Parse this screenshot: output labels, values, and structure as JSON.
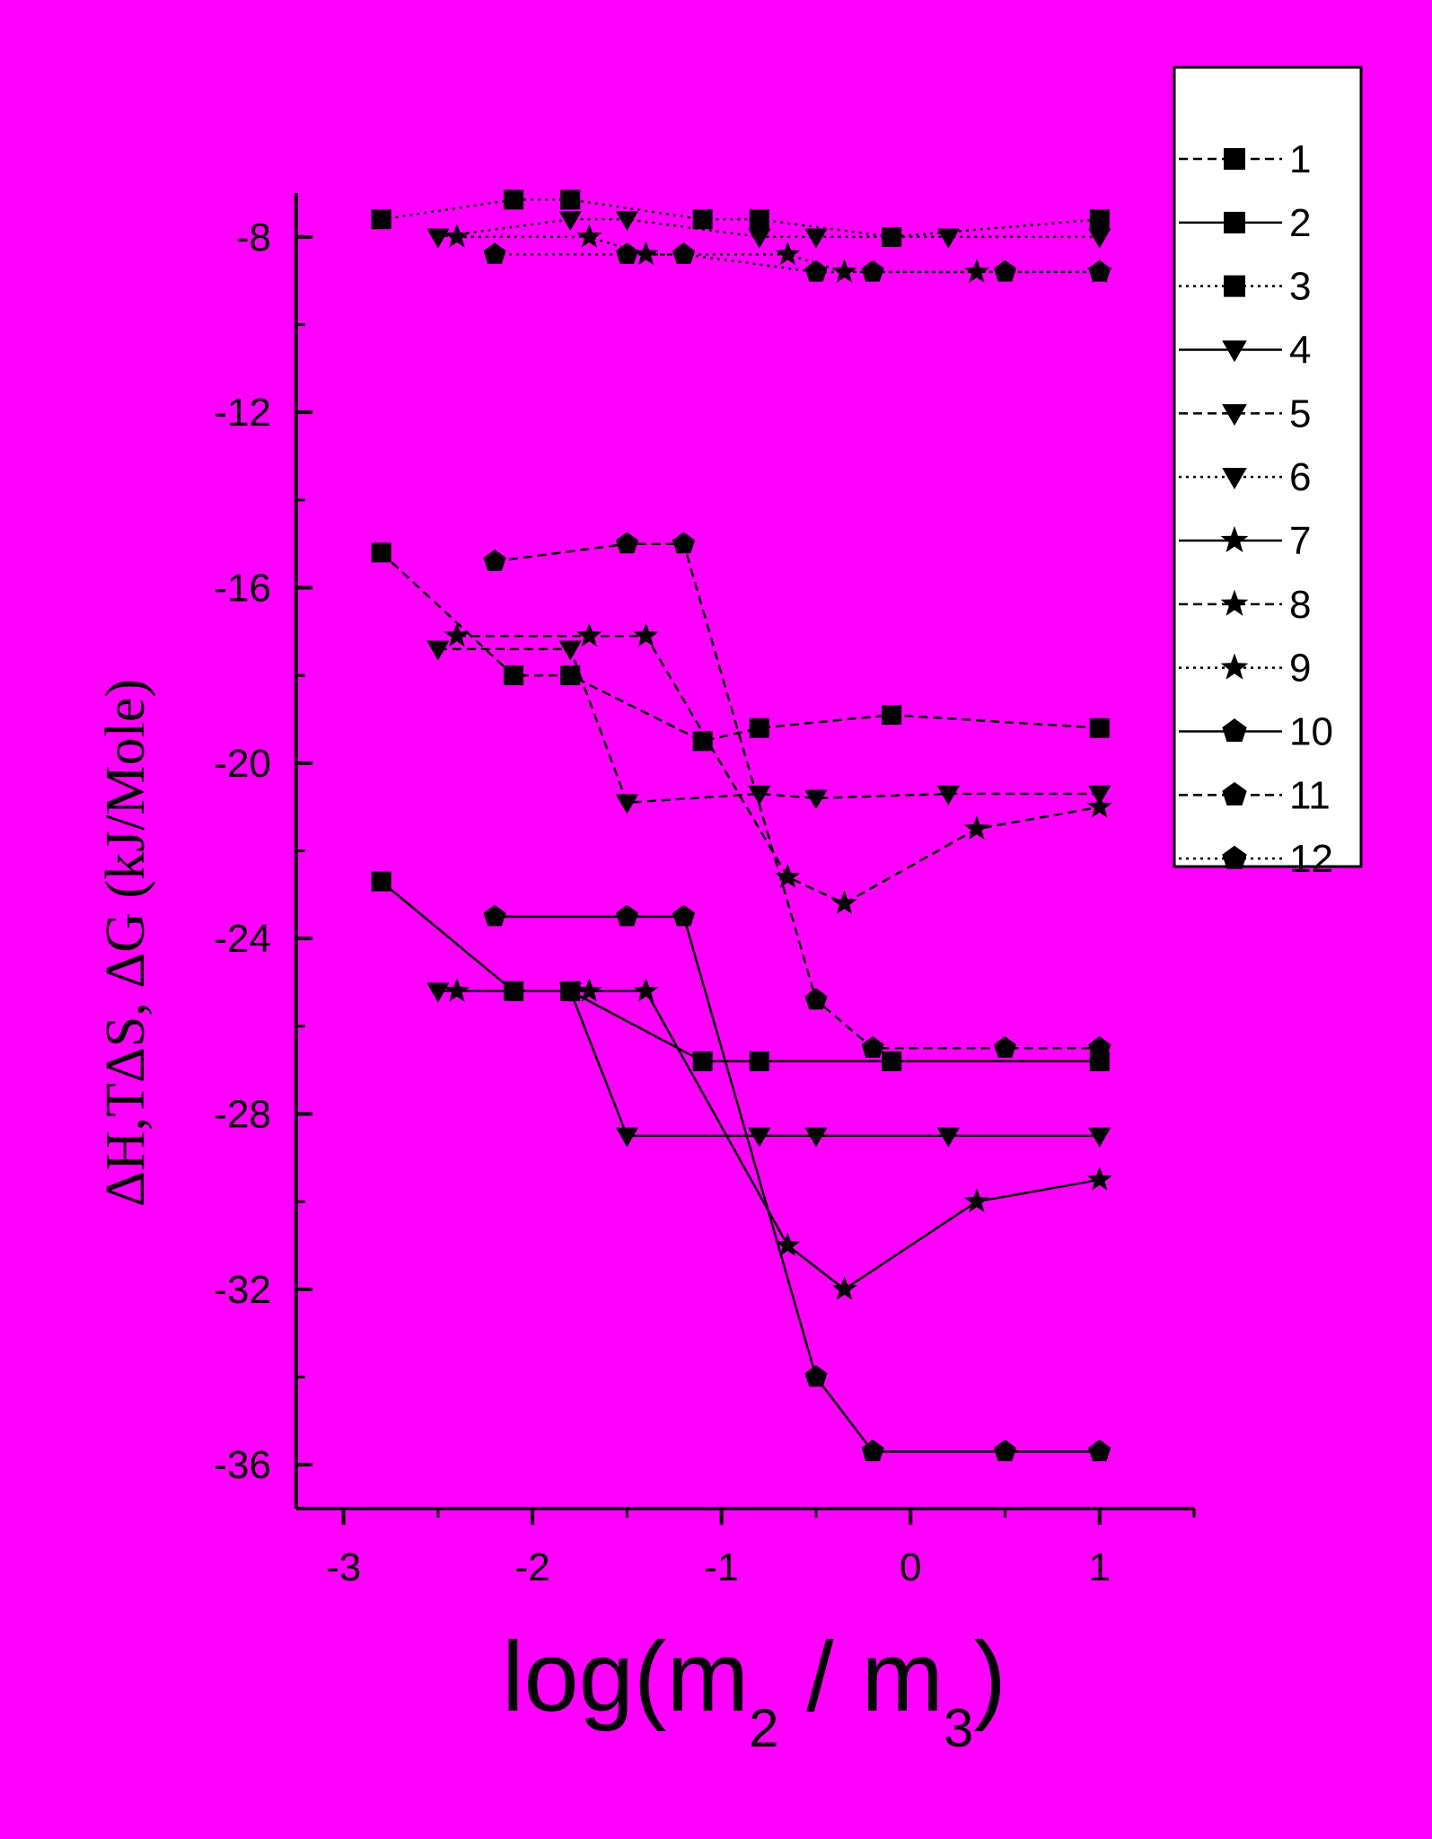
{
  "chart_data": {
    "type": "line",
    "xlabel": {
      "prefix": "log(m",
      "sub1": "2",
      "mid": " / m",
      "sub2": "3",
      "suffix": ")"
    },
    "ylabel": "ΔH,TΔS, ΔG  (kJ/Mole)",
    "xlim": [
      -3.25,
      1.5
    ],
    "ylim": [
      -37.0,
      -7.0
    ],
    "xticks": [
      -3,
      -2,
      -1,
      0,
      1
    ],
    "xtick_labels": [
      "-3",
      "-2",
      "-1",
      "0",
      "1"
    ],
    "yticks": [
      -8,
      -12,
      -16,
      -20,
      -24,
      -28,
      -32,
      -36
    ],
    "ytick_labels": [
      "-8",
      "-12",
      "-16",
      "-20",
      "-24",
      "-28",
      "-32",
      "-36"
    ],
    "grid": false,
    "legend_position": "top-right",
    "series": [
      {
        "name": "1",
        "marker": "square",
        "linestyle": "dashed",
        "x": [
          -2.8,
          -2.1,
          -1.8,
          -1.1,
          -0.8,
          -0.1,
          1.0
        ],
        "y": [
          -15.2,
          -18.0,
          -18.0,
          -19.5,
          -19.2,
          -18.9,
          -19.2
        ]
      },
      {
        "name": "2",
        "marker": "square",
        "linestyle": "solid",
        "x": [
          -2.8,
          -2.1,
          -1.8,
          -1.1,
          -0.8,
          -0.1,
          1.0
        ],
        "y": [
          -22.7,
          -25.2,
          -25.2,
          -26.8,
          -26.8,
          -26.8,
          -26.8
        ]
      },
      {
        "name": "3",
        "marker": "square",
        "linestyle": "dotted",
        "x": [
          -2.8,
          -2.1,
          -1.8,
          -1.1,
          -0.8,
          -0.1,
          1.0
        ],
        "y": [
          -7.6,
          -7.15,
          -7.15,
          -7.6,
          -7.6,
          -8.0,
          -7.6
        ]
      },
      {
        "name": "4",
        "marker": "triangle-down",
        "linestyle": "solid",
        "x": [
          -2.5,
          -1.8,
          -1.5,
          -0.8,
          -0.5,
          0.2,
          1.0
        ],
        "y": [
          -25.2,
          -25.2,
          -28.5,
          -28.5,
          -28.5,
          -28.5,
          -28.5
        ]
      },
      {
        "name": "5",
        "marker": "triangle-down",
        "linestyle": "dashed",
        "x": [
          -2.5,
          -1.8,
          -1.5,
          -0.8,
          -0.5,
          0.2,
          1.0
        ],
        "y": [
          -17.4,
          -17.4,
          -20.9,
          -20.7,
          -20.8,
          -20.7,
          -20.7
        ]
      },
      {
        "name": "6",
        "marker": "triangle-down",
        "linestyle": "dotted",
        "x": [
          -2.5,
          -1.8,
          -1.5,
          -0.8,
          -0.5,
          0.2,
          1.0
        ],
        "y": [
          -8.0,
          -7.6,
          -7.6,
          -8.0,
          -8.0,
          -8.0,
          -8.0
        ]
      },
      {
        "name": "7",
        "marker": "star",
        "linestyle": "solid",
        "x": [
          -2.4,
          -1.7,
          -1.4,
          -0.65,
          -0.35,
          0.35,
          1.0
        ],
        "y": [
          -25.2,
          -25.2,
          -25.2,
          -31.0,
          -32.0,
          -30.0,
          -29.5
        ]
      },
      {
        "name": "8",
        "marker": "star",
        "linestyle": "dashed",
        "x": [
          -2.4,
          -1.7,
          -1.4,
          -0.65,
          -0.35,
          0.35,
          1.0
        ],
        "y": [
          -17.1,
          -17.1,
          -17.1,
          -22.6,
          -23.2,
          -21.5,
          -21.0
        ]
      },
      {
        "name": "9",
        "marker": "star",
        "linestyle": "dotted",
        "x": [
          -2.4,
          -1.7,
          -1.4,
          -0.65,
          -0.35,
          0.35,
          1.0
        ],
        "y": [
          -8.0,
          -8.0,
          -8.4,
          -8.4,
          -8.8,
          -8.8,
          -8.8
        ]
      },
      {
        "name": "10",
        "marker": "pentagon",
        "linestyle": "solid",
        "x": [
          -2.2,
          -1.5,
          -1.2,
          -0.5,
          -0.2,
          0.5,
          1.0
        ],
        "y": [
          -23.5,
          -23.5,
          -23.5,
          -34.0,
          -35.7,
          -35.7,
          -35.7
        ]
      },
      {
        "name": "11",
        "marker": "pentagon",
        "linestyle": "dashed",
        "x": [
          -2.2,
          -1.5,
          -1.2,
          -0.5,
          -0.2,
          0.5,
          1.0
        ],
        "y": [
          -15.4,
          -15.0,
          -15.0,
          -25.4,
          -26.5,
          -26.5,
          -26.5
        ]
      },
      {
        "name": "12",
        "marker": "pentagon",
        "linestyle": "dotted",
        "x": [
          -2.2,
          -1.5,
          -1.2,
          -0.5,
          -0.2,
          0.5,
          1.0
        ],
        "y": [
          -8.4,
          -8.4,
          -8.4,
          -8.8,
          -8.8,
          -8.8,
          -8.8
        ]
      }
    ]
  }
}
